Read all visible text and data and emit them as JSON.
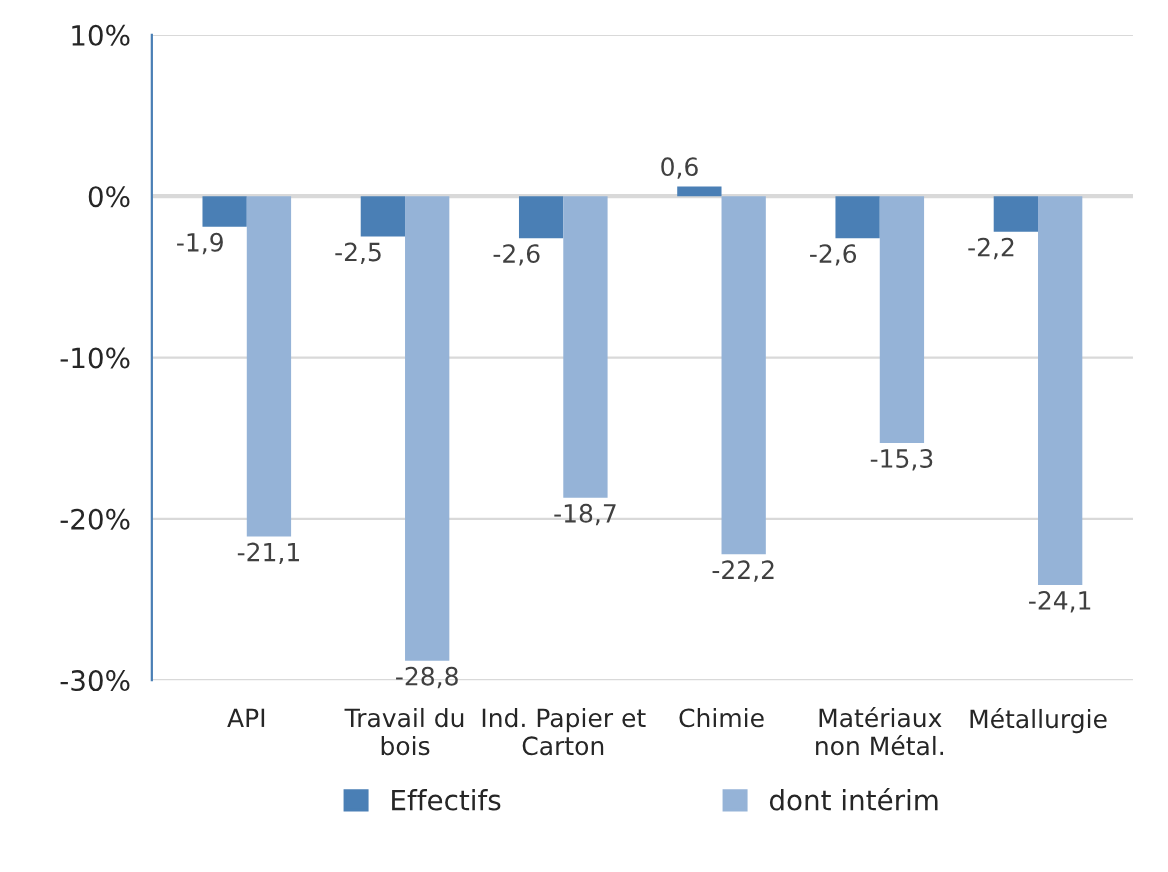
{
  "chart_data": {
    "type": "bar",
    "categories": [
      "API",
      "Travail du\nbois",
      "Ind. Papier et\nCarton",
      "Chimie",
      "Matériaux\nnon Métal.",
      "Métallurgie"
    ],
    "series": [
      {
        "name": "Effectifs",
        "color": "#4a7fb5",
        "values": [
          -1.9,
          -2.5,
          -2.6,
          0.6,
          -2.6,
          -2.2
        ],
        "value_labels": [
          "-1,9",
          "-2,5",
          "-2,6",
          "0,6",
          "-2,6",
          "-2,2"
        ]
      },
      {
        "name": "dont intérim",
        "color": "#95b3d7",
        "values": [
          -21.1,
          -28.8,
          -18.7,
          -22.2,
          -15.3,
          -24.1
        ],
        "value_labels": [
          "-21,1",
          "-28,8",
          "-18,7",
          "-22,2",
          "-15,3",
          "-24,1"
        ]
      }
    ],
    "ylim": [
      -30,
      10
    ],
    "yticks": [
      {
        "value": -30,
        "label": "-30%"
      },
      {
        "value": -20,
        "label": "-20%"
      },
      {
        "value": -10,
        "label": "-10%"
      },
      {
        "value": 0,
        "label": "0%"
      },
      {
        "value": 10,
        "label": "10%"
      }
    ],
    "grid": "y",
    "legend": "bottom"
  }
}
